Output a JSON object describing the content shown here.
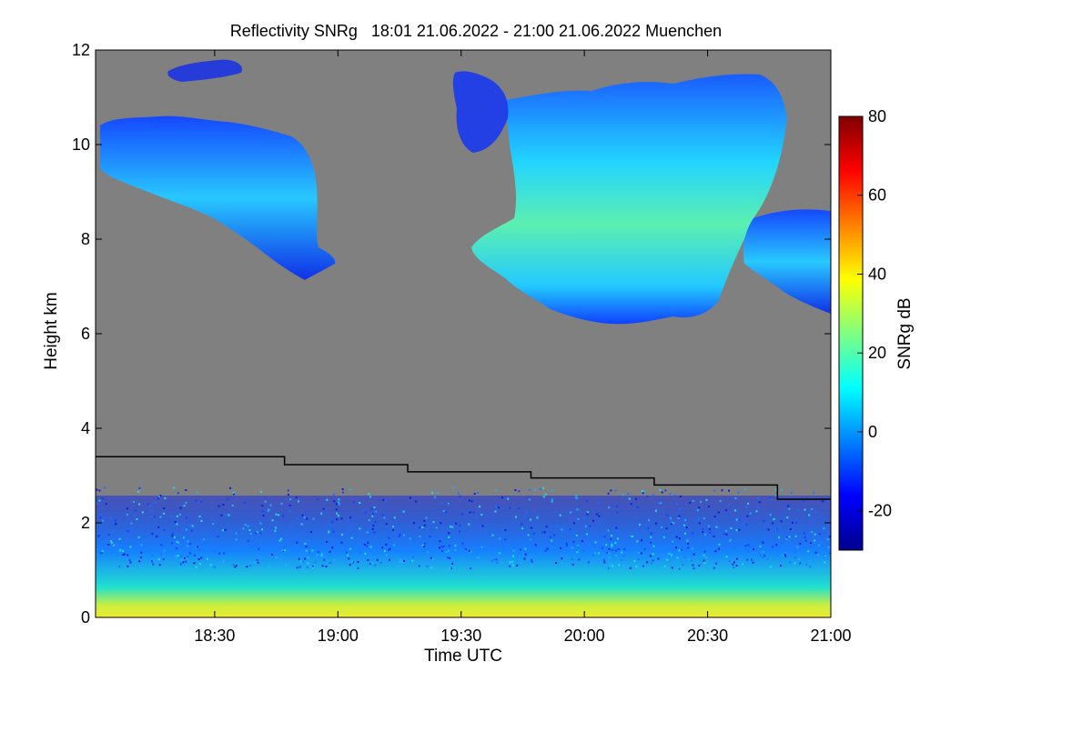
{
  "chart_data": {
    "type": "heatmap",
    "title": "Reflectivity SNRg   18:01 21.06.2022 - 21:00 21.06.2022 Muenchen",
    "xlabel": "Time UTC",
    "ylabel": "Height km",
    "colorbar_label": "SNRg dB",
    "xlim": [
      "18:01",
      "21:00"
    ],
    "ylim": [
      0,
      12
    ],
    "x_ticks": [
      "18:30",
      "19:00",
      "19:30",
      "20:00",
      "20:30",
      "21:00"
    ],
    "y_ticks": [
      "0",
      "2",
      "4",
      "6",
      "8",
      "10",
      "12"
    ],
    "colorbar_range": [
      -30,
      80
    ],
    "colorbar_ticks": [
      "-20",
      "0",
      "20",
      "40",
      "60",
      "80"
    ],
    "colormap": "jet",
    "background_color": "#808080",
    "boundary_layer_line": {
      "color": "#000000",
      "steps": [
        {
          "from": "18:01",
          "to": "18:47",
          "height_km": 3.4
        },
        {
          "from": "18:47",
          "to": "19:17",
          "height_km": 3.23
        },
        {
          "from": "19:17",
          "to": "19:47",
          "height_km": 3.08
        },
        {
          "from": "19:47",
          "to": "20:17",
          "height_km": 2.95
        },
        {
          "from": "20:17",
          "to": "20:47",
          "height_km": 2.8
        },
        {
          "from": "20:47",
          "to": "21:00",
          "height_km": 2.5
        }
      ]
    },
    "regions": [
      {
        "name": "cirrus-left",
        "time": [
          "18:01",
          "18:57"
        ],
        "height_km": [
          7.1,
          10.6
        ],
        "snr_db": [
          -15,
          8
        ]
      },
      {
        "name": "cloud-main",
        "time": [
          "19:35",
          "20:48"
        ],
        "height_km": [
          6.1,
          11.3
        ],
        "snr_db": [
          -15,
          28
        ]
      },
      {
        "name": "cloud-right",
        "time": [
          "20:43",
          "21:00"
        ],
        "height_km": [
          6.4,
          8.9
        ],
        "snr_db": [
          -15,
          5
        ]
      },
      {
        "name": "boundary-layer",
        "time": [
          "18:01",
          "21:00"
        ],
        "height_km": [
          0,
          2.5
        ],
        "snr_db": [
          -20,
          40
        ]
      }
    ]
  }
}
